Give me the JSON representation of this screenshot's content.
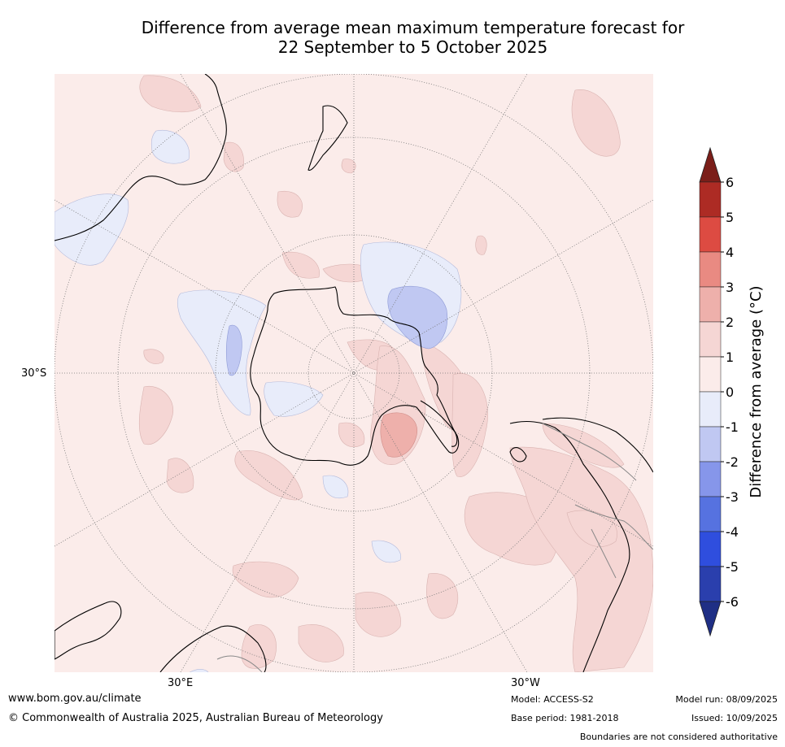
{
  "title": {
    "line1": "Difference from average mean maximum temperature forecast for",
    "line2": "22 September to 5 October 2025"
  },
  "map": {
    "lat_label": "30°S",
    "lon_labels": [
      "30°E",
      "30°W"
    ]
  },
  "colorbar": {
    "label": "Difference from average (°C)",
    "ticks": [
      "6",
      "5",
      "4",
      "3",
      "2",
      "1",
      "0",
      "-1",
      "-2",
      "-3",
      "-4",
      "-5",
      "-6"
    ],
    "colors_high_to_low": [
      "#7b1e19",
      "#ad2b24",
      "#dd4b42",
      "#e98a82",
      "#eeb0ab",
      "#f5d6d4",
      "#fbecea",
      "#e8ecfa",
      "#c0c8f2",
      "#8696ea",
      "#5672e0",
      "#2f4ede",
      "#2a3fad",
      "#1f2f85"
    ]
  },
  "footer": {
    "website": "www.bom.gov.au/climate",
    "copyright": "© Commonwealth of Australia 2025, Australian Bureau of Meteorology",
    "model": "Model: ACCESS-S2",
    "base_period": "Base period: 1981-2018",
    "model_run": "Model run: 08/09/2025",
    "issued": "Issued: 10/09/2025",
    "disclaimer": "Boundaries are not considered authoritative"
  }
}
